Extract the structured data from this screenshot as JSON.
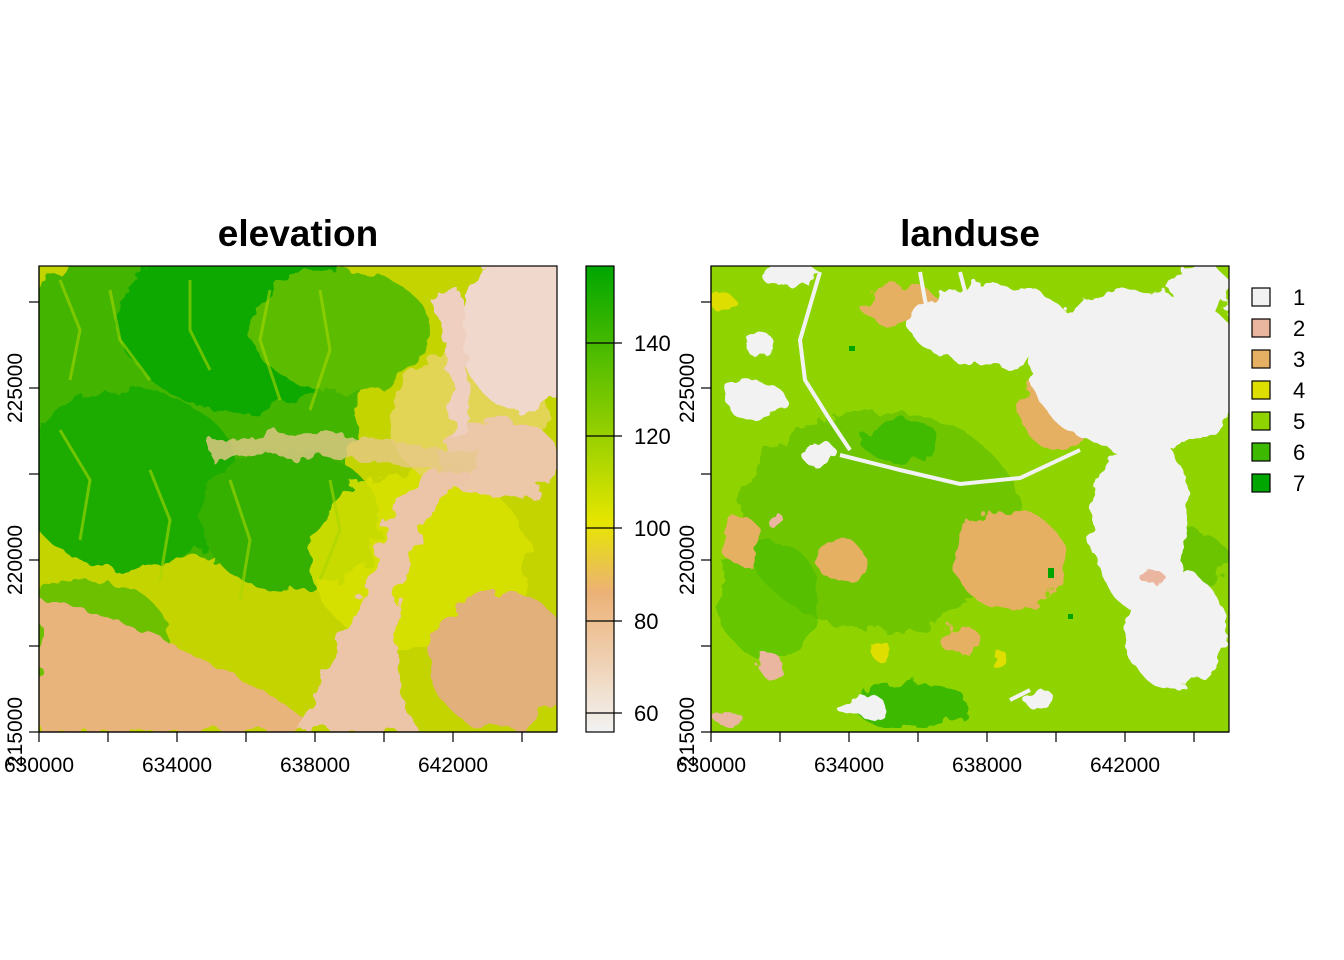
{
  "maps": [
    {
      "title": "elevation",
      "x_ticks": [
        "630000",
        "634000",
        "638000",
        "642000"
      ],
      "y_ticks": [
        "215000",
        "220000",
        "225000"
      ],
      "legend": {
        "type": "continuous",
        "range": [
          55,
          156
        ],
        "ticks": [
          "60",
          "80",
          "100",
          "120",
          "140"
        ],
        "colors": [
          "#f2f2f2",
          "#ecb176",
          "#e6e600",
          "#00a600"
        ]
      }
    },
    {
      "title": "landuse",
      "x_ticks": [
        "630000",
        "634000",
        "638000",
        "642000"
      ],
      "y_ticks": [
        "215000",
        "220000",
        "225000"
      ],
      "legend": {
        "type": "categorical",
        "classes": [
          {
            "label": "1",
            "color": "#f2f2f2"
          },
          {
            "label": "2",
            "color": "#eab69f"
          },
          {
            "label": "3",
            "color": "#e6b064"
          },
          {
            "label": "4",
            "color": "#dede00"
          },
          {
            "label": "5",
            "color": "#8fd400"
          },
          {
            "label": "6",
            "color": "#3dba00"
          },
          {
            "label": "7",
            "color": "#00a600"
          }
        ]
      }
    }
  ]
}
